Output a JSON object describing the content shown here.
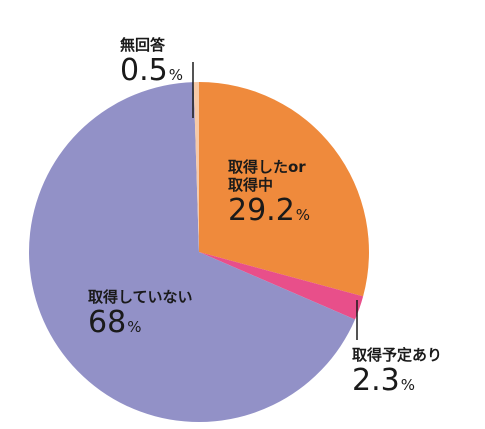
{
  "chart_data": {
    "type": "pie",
    "start_angle_deg": 0,
    "direction": "clockwise",
    "legend": "none",
    "slices": [
      {
        "label": "取得したor取得中",
        "label_lines": [
          "取得したor",
          "取得中"
        ],
        "value": 29.2,
        "value_text": "29.2",
        "unit": "%",
        "color": "#ef8a3c"
      },
      {
        "label": "取得予定あり",
        "label_lines": [
          "取得予定あり"
        ],
        "value": 2.3,
        "value_text": "2.3",
        "unit": "%",
        "color": "#e84f8a"
      },
      {
        "label": "取得していない",
        "label_lines": [
          "取得していない"
        ],
        "value": 68,
        "value_text": "68",
        "unit": "%",
        "color": "#9291c7"
      },
      {
        "label": "無回答",
        "label_lines": [
          "無回答"
        ],
        "value": 0.5,
        "value_text": "0.5",
        "unit": "%",
        "color": "#f6c9a8"
      }
    ]
  }
}
